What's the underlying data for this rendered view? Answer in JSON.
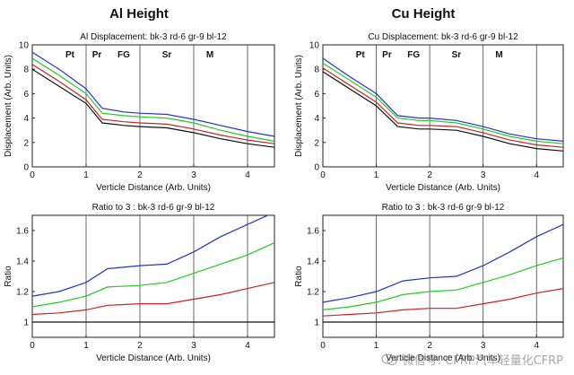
{
  "headings": {
    "left": "Al Height",
    "right": "Cu Height"
  },
  "watermark": {
    "text": "微信号: CFRP汽车轻量化CFRP",
    "icon": "wechat-icon"
  },
  "colors": {
    "blue": "#2233cc",
    "green": "#22cc22",
    "red": "#cc2222",
    "black": "#111111",
    "grid": "#444444",
    "axis": "#222222"
  },
  "chart_data": [
    {
      "id": "al-displacement",
      "type": "line",
      "title": "Al Displacement: bk-3 rd-6 gr-9 bl-12",
      "xlabel": "Verticle Distance (Arb. Units)",
      "ylabel": "Displacement (Arb. Units)",
      "xlim": [
        0,
        4.5
      ],
      "ylim": [
        0,
        10
      ],
      "xticks": [
        0,
        1,
        2,
        3,
        4
      ],
      "yticks": [
        0,
        2,
        4,
        6,
        8,
        10
      ],
      "vlines": [
        1,
        2,
        3,
        4
      ],
      "regions": [
        {
          "label": "Pt",
          "x": 0.7
        },
        {
          "label": "Pr",
          "x": 1.2
        },
        {
          "label": "FG",
          "x": 1.7
        },
        {
          "label": "Sr",
          "x": 2.5
        },
        {
          "label": "M",
          "x": 3.3
        }
      ],
      "series": [
        {
          "name": "bl-12",
          "color": "blue",
          "x": [
            0,
            0.5,
            1.0,
            1.3,
            1.7,
            2.0,
            2.5,
            3.0,
            3.5,
            4.0,
            4.5
          ],
          "y": [
            9.4,
            8.0,
            6.4,
            4.8,
            4.5,
            4.4,
            4.3,
            3.9,
            3.4,
            2.9,
            2.5
          ]
        },
        {
          "name": "gr-9",
          "color": "green",
          "x": [
            0,
            0.5,
            1.0,
            1.3,
            1.7,
            2.0,
            2.5,
            3.0,
            3.5,
            4.0,
            4.5
          ],
          "y": [
            8.9,
            7.5,
            6.0,
            4.4,
            4.2,
            4.1,
            4.0,
            3.6,
            3.0,
            2.5,
            2.1
          ]
        },
        {
          "name": "rd-6",
          "color": "red",
          "x": [
            0,
            0.5,
            1.0,
            1.3,
            1.7,
            2.0,
            2.5,
            3.0,
            3.5,
            4.0,
            4.5
          ],
          "y": [
            8.4,
            7.0,
            5.5,
            3.9,
            3.7,
            3.6,
            3.5,
            3.1,
            2.6,
            2.2,
            1.9
          ]
        },
        {
          "name": "bk-3",
          "color": "black",
          "x": [
            0,
            0.5,
            1.0,
            1.3,
            1.7,
            2.0,
            2.5,
            3.0,
            3.5,
            4.0,
            4.5
          ],
          "y": [
            8.0,
            6.6,
            5.2,
            3.6,
            3.4,
            3.3,
            3.2,
            2.8,
            2.3,
            1.9,
            1.6
          ]
        }
      ]
    },
    {
      "id": "cu-displacement",
      "type": "line",
      "title": "Cu Displacement: bk-3 rd-6 gr-9 bl-12",
      "xlabel": "Verticle Distance (Arb. Units)",
      "ylabel": "Displacement (Arb. Units)",
      "xlim": [
        0,
        4.5
      ],
      "ylim": [
        0,
        10
      ],
      "xticks": [
        0,
        1,
        2,
        3,
        4
      ],
      "yticks": [
        0,
        2,
        4,
        6,
        8,
        10
      ],
      "vlines": [
        1,
        2,
        3,
        4
      ],
      "regions": [
        {
          "label": "Pt",
          "x": 0.7
        },
        {
          "label": "Pr",
          "x": 1.2
        },
        {
          "label": "FG",
          "x": 1.7
        },
        {
          "label": "Sr",
          "x": 2.5
        },
        {
          "label": "M",
          "x": 3.3
        }
      ],
      "series": [
        {
          "name": "bl-12",
          "color": "blue",
          "x": [
            0,
            0.5,
            1.0,
            1.4,
            1.8,
            2.0,
            2.5,
            3.0,
            3.5,
            4.0,
            4.5
          ],
          "y": [
            8.9,
            7.4,
            6.0,
            4.2,
            4.0,
            4.0,
            3.8,
            3.3,
            2.7,
            2.3,
            2.1
          ]
        },
        {
          "name": "gr-9",
          "color": "green",
          "x": [
            0,
            0.5,
            1.0,
            1.4,
            1.8,
            2.0,
            2.5,
            3.0,
            3.5,
            4.0,
            4.5
          ],
          "y": [
            8.5,
            7.1,
            5.7,
            4.0,
            3.8,
            3.8,
            3.6,
            3.1,
            2.5,
            2.1,
            1.9
          ]
        },
        {
          "name": "rd-6",
          "color": "red",
          "x": [
            0,
            0.5,
            1.0,
            1.4,
            1.8,
            2.0,
            2.5,
            3.0,
            3.5,
            4.0,
            4.5
          ],
          "y": [
            8.1,
            6.7,
            5.3,
            3.6,
            3.4,
            3.4,
            3.3,
            2.8,
            2.2,
            1.8,
            1.6
          ]
        },
        {
          "name": "bk-3",
          "color": "black",
          "x": [
            0,
            0.5,
            1.0,
            1.4,
            1.8,
            2.0,
            2.5,
            3.0,
            3.5,
            4.0,
            4.5
          ],
          "y": [
            7.8,
            6.4,
            5.0,
            3.3,
            3.1,
            3.1,
            3.0,
            2.5,
            1.9,
            1.5,
            1.3
          ]
        }
      ]
    },
    {
      "id": "al-ratio",
      "type": "line",
      "title": "Ratio to 3 : bk-3 rd-6 gr-9 bl-12",
      "xlabel": "Verticle Distance (Arb. Units)",
      "ylabel": "Ratio",
      "xlim": [
        0,
        4.5
      ],
      "ylim": [
        0.9,
        1.7
      ],
      "xticks": [
        0,
        1,
        2,
        3,
        4
      ],
      "yticks": [
        1,
        1.2,
        1.4,
        1.6
      ],
      "vlines": [
        1,
        2,
        3,
        4
      ],
      "regions": [],
      "series": [
        {
          "name": "bl-12",
          "color": "blue",
          "x": [
            0,
            0.5,
            1.0,
            1.4,
            2.0,
            2.5,
            3.0,
            3.5,
            4.0,
            4.5
          ],
          "y": [
            1.17,
            1.2,
            1.26,
            1.35,
            1.37,
            1.38,
            1.46,
            1.56,
            1.64,
            1.72
          ]
        },
        {
          "name": "gr-9",
          "color": "green",
          "x": [
            0,
            0.5,
            1.0,
            1.4,
            2.0,
            2.5,
            3.0,
            3.5,
            4.0,
            4.5
          ],
          "y": [
            1.1,
            1.13,
            1.17,
            1.23,
            1.24,
            1.26,
            1.32,
            1.38,
            1.44,
            1.52
          ]
        },
        {
          "name": "rd-6",
          "color": "red",
          "x": [
            0,
            0.5,
            1.0,
            1.4,
            2.0,
            2.5,
            3.0,
            3.5,
            4.0,
            4.5
          ],
          "y": [
            1.05,
            1.06,
            1.08,
            1.11,
            1.12,
            1.12,
            1.15,
            1.18,
            1.22,
            1.26
          ]
        },
        {
          "name": "bk-3",
          "color": "black",
          "x": [
            0,
            4.5
          ],
          "y": [
            1.0,
            1.0
          ]
        }
      ]
    },
    {
      "id": "cu-ratio",
      "type": "line",
      "title": "Ratio to 3 : bk-3 rd-6 gr-9 bl-12",
      "xlabel": "Verticle Distance (Arb. Units)",
      "ylabel": "Ratio",
      "xlim": [
        0,
        4.5
      ],
      "ylim": [
        0.9,
        1.7
      ],
      "xticks": [
        0,
        1,
        2,
        3,
        4
      ],
      "yticks": [
        1,
        1.2,
        1.4,
        1.6
      ],
      "vlines": [
        1,
        2,
        3,
        4
      ],
      "regions": [],
      "series": [
        {
          "name": "bl-12",
          "color": "blue",
          "x": [
            0,
            0.5,
            1.0,
            1.5,
            2.0,
            2.5,
            3.0,
            3.5,
            4.0,
            4.5
          ],
          "y": [
            1.13,
            1.16,
            1.2,
            1.27,
            1.29,
            1.3,
            1.37,
            1.46,
            1.56,
            1.64
          ]
        },
        {
          "name": "gr-9",
          "color": "green",
          "x": [
            0,
            0.5,
            1.0,
            1.5,
            2.0,
            2.5,
            3.0,
            3.5,
            4.0,
            4.5
          ],
          "y": [
            1.08,
            1.1,
            1.13,
            1.18,
            1.2,
            1.21,
            1.26,
            1.31,
            1.37,
            1.42
          ]
        },
        {
          "name": "rd-6",
          "color": "red",
          "x": [
            0,
            0.5,
            1.0,
            1.5,
            2.0,
            2.5,
            3.0,
            3.5,
            4.0,
            4.5
          ],
          "y": [
            1.04,
            1.05,
            1.06,
            1.08,
            1.09,
            1.09,
            1.12,
            1.15,
            1.19,
            1.22
          ]
        },
        {
          "name": "bk-3",
          "color": "black",
          "x": [
            0,
            4.5
          ],
          "y": [
            1.0,
            1.0
          ]
        }
      ]
    }
  ]
}
